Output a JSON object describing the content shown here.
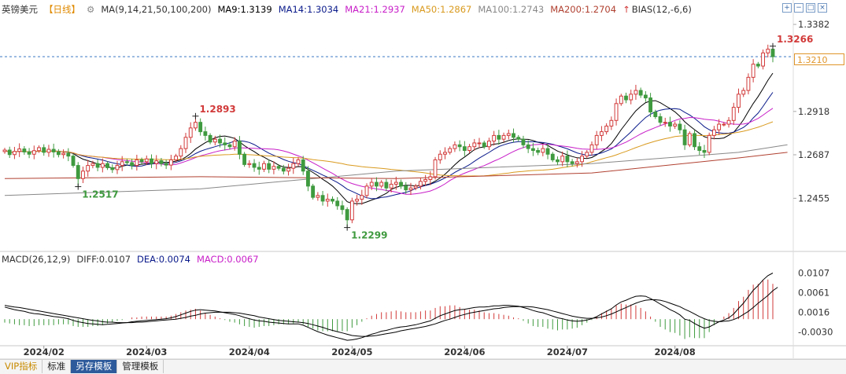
{
  "header": {
    "symbol": "英镑美元",
    "period": "【日线】",
    "icons": [
      "settings-icon",
      "ma-icon"
    ],
    "ma_params": "MA(9,14,21,50,100,200)",
    "ma9": "MA9:1.3139",
    "ma14": "MA14:1.3034",
    "ma21": "MA21:1.2937",
    "ma50": "MA50:1.2867",
    "ma100": "MA100:1.2743",
    "ma200": "MA200:1.2704",
    "bias": "BIAS(12,-6,6)"
  },
  "colors": {
    "up": "#d23a3a",
    "down": "#3f9a3f",
    "ma9": "#000000",
    "ma14": "#0a1a8a",
    "ma21": "#c81ec8",
    "ma50": "#d99a1e",
    "ma100": "#888888",
    "ma200": "#b04030",
    "dif": "#000000",
    "dea": "#000000"
  },
  "price_labels": {
    "current": "1.3210",
    "high_label": "1.3266",
    "mid_high_label": "1.2893",
    "low_label_1": "1.2517",
    "low_label_2": "1.2299"
  },
  "macd_header": {
    "params": "MACD(26,12,9)",
    "diff": "DIFF:0.0107",
    "dea": "DEA:0.0074",
    "macd": "MACD:0.0067"
  },
  "tabs": [
    "VIP指标",
    "标准",
    "另存模板",
    "管理模板"
  ],
  "chart_data": {
    "type": "candlestick",
    "price_axis": {
      "ticks": [
        "1.3382",
        "1.2918",
        "1.2687",
        "1.2455"
      ],
      "tick_values": [
        1.3382,
        1.2918,
        1.2687,
        1.2455
      ],
      "ylim": [
        1.218,
        1.342
      ]
    },
    "macd_axis": {
      "ticks": [
        "0.0107",
        "0.0061",
        "0.0016",
        "-0.0030"
      ],
      "tick_values": [
        0.0107,
        0.0061,
        0.0016,
        -0.003
      ],
      "ylim": [
        -0.0058,
        0.0128
      ]
    },
    "x_ticks": [
      "2024/02",
      "2024/03",
      "2024/04",
      "2024/05",
      "2024/06",
      "2024/07",
      "2024/08"
    ],
    "x_tick_index": [
      8,
      29,
      50,
      71,
      94,
      115,
      137
    ],
    "annotations": [
      {
        "label": "1.3266",
        "index": 157,
        "value": 1.3266
      },
      {
        "label": "1.2893",
        "index": 39,
        "value": 1.2893
      },
      {
        "label": "1.2517",
        "index": 15,
        "value": 1.2517
      },
      {
        "label": "1.2299",
        "index": 70,
        "value": 1.2299
      }
    ],
    "current_price": 1.321,
    "closes": [
      1.2712,
      1.2688,
      1.2705,
      1.2718,
      1.2702,
      1.269,
      1.2709,
      1.2725,
      1.27,
      1.2716,
      1.2702,
      1.2688,
      1.2695,
      1.268,
      1.263,
      1.256,
      1.26,
      1.263,
      1.264,
      1.262,
      1.264,
      1.2618,
      1.2608,
      1.263,
      1.265,
      1.2645,
      1.263,
      1.266,
      1.265,
      1.2665,
      1.264,
      1.2655,
      1.264,
      1.2632,
      1.266,
      1.268,
      1.272,
      1.278,
      1.283,
      1.286,
      1.281,
      1.279,
      1.2755,
      1.277,
      1.275,
      1.274,
      1.273,
      1.276,
      1.269,
      1.2635,
      1.264,
      1.262,
      1.261,
      1.264,
      1.261,
      1.2625,
      1.2615,
      1.26,
      1.2615,
      1.264,
      1.266,
      1.26,
      1.252,
      1.246,
      1.247,
      1.244,
      1.245,
      1.244,
      1.2415,
      1.2395,
      1.234,
      1.244,
      1.245,
      1.247,
      1.252,
      1.254,
      1.252,
      1.254,
      1.251,
      1.253,
      1.254,
      1.252,
      1.25,
      1.251,
      1.252,
      1.2545,
      1.2555,
      1.257,
      1.266,
      1.269,
      1.27,
      1.272,
      1.274,
      1.273,
      1.271,
      1.273,
      1.275,
      1.275,
      1.273,
      1.276,
      1.279,
      1.277,
      1.279,
      1.28,
      1.278,
      1.277,
      1.274,
      1.272,
      1.271,
      1.27,
      1.272,
      1.269,
      1.266,
      1.265,
      1.268,
      1.265,
      1.264,
      1.265,
      1.268,
      1.27,
      1.274,
      1.279,
      1.281,
      1.284,
      1.287,
      1.296,
      1.3,
      1.298,
      1.301,
      1.303,
      1.3005,
      1.299,
      1.2915,
      1.289,
      1.286,
      1.286,
      1.284,
      1.285,
      1.282,
      1.274,
      1.28,
      1.273,
      1.271,
      1.27,
      1.279,
      1.282,
      1.285,
      1.285,
      1.287,
      1.294,
      1.301,
      1.303,
      1.31,
      1.317,
      1.316,
      1.323,
      1.325,
      1.321
    ],
    "dif_values": [
      0.0028,
      0.0025,
      0.0022,
      0.002,
      0.0018,
      0.0015,
      0.0013,
      0.0012,
      0.001,
      0.0008,
      0.0006,
      0.0005,
      0.0003,
      0.0001,
      -0.0003,
      -0.0006,
      -0.0008,
      -0.001,
      -0.0011,
      -0.0012,
      -0.0013,
      -0.0012,
      -0.0011,
      -0.001,
      -0.0009,
      -0.0008,
      -0.0006,
      -0.0005,
      -0.0004,
      -0.0003,
      -0.0002,
      -0.0001,
      0.0,
      0.0001,
      0.0003,
      0.0006,
      0.001,
      0.0014,
      0.0018,
      0.0021,
      0.0022,
      0.0021,
      0.002,
      0.0019,
      0.0017,
      0.0015,
      0.0013,
      0.0011,
      0.0008,
      0.0004,
      0.0001,
      -0.0002,
      -0.0004,
      -0.0005,
      -0.0007,
      -0.0008,
      -0.0009,
      -0.001,
      -0.0011,
      -0.0011,
      -0.0011,
      -0.0014,
      -0.0019,
      -0.0024,
      -0.0029,
      -0.0033,
      -0.0037,
      -0.004,
      -0.0043,
      -0.0046,
      -0.0049,
      -0.0048,
      -0.0046,
      -0.0043,
      -0.0039,
      -0.0035,
      -0.0032,
      -0.0028,
      -0.0026,
      -0.0023,
      -0.002,
      -0.0018,
      -0.0017,
      -0.0015,
      -0.0013,
      -0.001,
      -0.0007,
      -0.0004,
      0.0002,
      0.0008,
      0.0012,
      0.0016,
      0.002,
      0.0022,
      0.0023,
      0.0025,
      0.0027,
      0.0028,
      0.0028,
      0.0029,
      0.0031,
      0.0031,
      0.0032,
      0.0032,
      0.0031,
      0.003,
      0.0027,
      0.0024,
      0.002,
      0.0017,
      0.0015,
      0.0011,
      0.0007,
      0.0003,
      0.0001,
      -0.0002,
      -0.0004,
      -0.0005,
      -0.0004,
      -0.0002,
      0.0001,
      0.0006,
      0.0012,
      0.0018,
      0.0024,
      0.0033,
      0.004,
      0.0044,
      0.0049,
      0.0053,
      0.0054,
      0.0053,
      0.0048,
      0.0042,
      0.0035,
      0.0029,
      0.0022,
      0.0017,
      0.001,
      0.0,
      -0.0003,
      -0.001,
      -0.0016,
      -0.0021,
      -0.0018,
      -0.0012,
      -0.0006,
      -0.0002,
      0.0003,
      0.0012,
      0.0025,
      0.0037,
      0.0052,
      0.0067,
      0.0078,
      0.0091,
      0.0101,
      0.0107
    ],
    "dea_values": [
      0.0032,
      0.003,
      0.0028,
      0.0027,
      0.0025,
      0.0023,
      0.0021,
      0.0019,
      0.0017,
      0.0015,
      0.0013,
      0.0011,
      0.0009,
      0.0007,
      0.0005,
      0.0003,
      0.0001,
      -0.0001,
      -0.0003,
      -0.0004,
      -0.0006,
      -0.0007,
      -0.0007,
      -0.0008,
      -0.0008,
      -0.0008,
      -0.0008,
      -0.0007,
      -0.0007,
      -0.0006,
      -0.0005,
      -0.0004,
      -0.0003,
      -0.0002,
      -0.0001,
      0.0,
      0.0002,
      0.0004,
      0.0007,
      0.0009,
      0.0012,
      0.0014,
      0.0015,
      0.0016,
      0.0016,
      0.0016,
      0.0016,
      0.0015,
      0.0014,
      0.0012,
      0.001,
      0.0008,
      0.0005,
      0.0003,
      0.0001,
      -0.0001,
      -0.0003,
      -0.0004,
      -0.0005,
      -0.0006,
      -0.0007,
      -0.0008,
      -0.001,
      -0.0013,
      -0.0016,
      -0.0019,
      -0.0023,
      -0.0026,
      -0.0029,
      -0.0032,
      -0.0035,
      -0.0038,
      -0.0039,
      -0.004,
      -0.004,
      -0.0039,
      -0.0038,
      -0.0036,
      -0.0034,
      -0.0032,
      -0.003,
      -0.0027,
      -0.0025,
      -0.0023,
      -0.0021,
      -0.0019,
      -0.0017,
      -0.0014,
      -0.0011,
      -0.0007,
      -0.0003,
      0.0,
      0.0004,
      0.0008,
      0.0011,
      0.0014,
      0.0016,
      0.0018,
      0.002,
      0.0022,
      0.0024,
      0.0025,
      0.0027,
      0.0028,
      0.0029,
      0.0029,
      0.0029,
      0.0029,
      0.0028,
      0.0026,
      0.0024,
      0.0022,
      0.0019,
      0.0016,
      0.0013,
      0.001,
      0.0007,
      0.0005,
      0.0003,
      0.0002,
      0.0002,
      0.0003,
      0.0005,
      0.0008,
      0.0012,
      0.0017,
      0.0022,
      0.0027,
      0.0032,
      0.0037,
      0.0041,
      0.0044,
      0.0045,
      0.0045,
      0.0044,
      0.0041,
      0.0037,
      0.0033,
      0.0029,
      0.0023,
      0.0018,
      0.0012,
      0.0006,
      0.0001,
      -0.0003,
      -0.0005,
      -0.0006,
      -0.0005,
      -0.0004,
      -0.0001,
      0.0004,
      0.0011,
      0.0018,
      0.0027,
      0.0037,
      0.0046,
      0.0055,
      0.0066,
      0.0074
    ],
    "ma_overlays": {
      "ma100": [
        [
          0,
          1.247
        ],
        [
          40,
          1.2505
        ],
        [
          80,
          1.26
        ],
        [
          120,
          1.264
        ],
        [
          150,
          1.27
        ],
        [
          160,
          1.274
        ]
      ],
      "ma200": [
        [
          0,
          1.256
        ],
        [
          40,
          1.257
        ],
        [
          80,
          1.256
        ],
        [
          120,
          1.259
        ],
        [
          150,
          1.267
        ],
        [
          160,
          1.27
        ]
      ]
    }
  }
}
